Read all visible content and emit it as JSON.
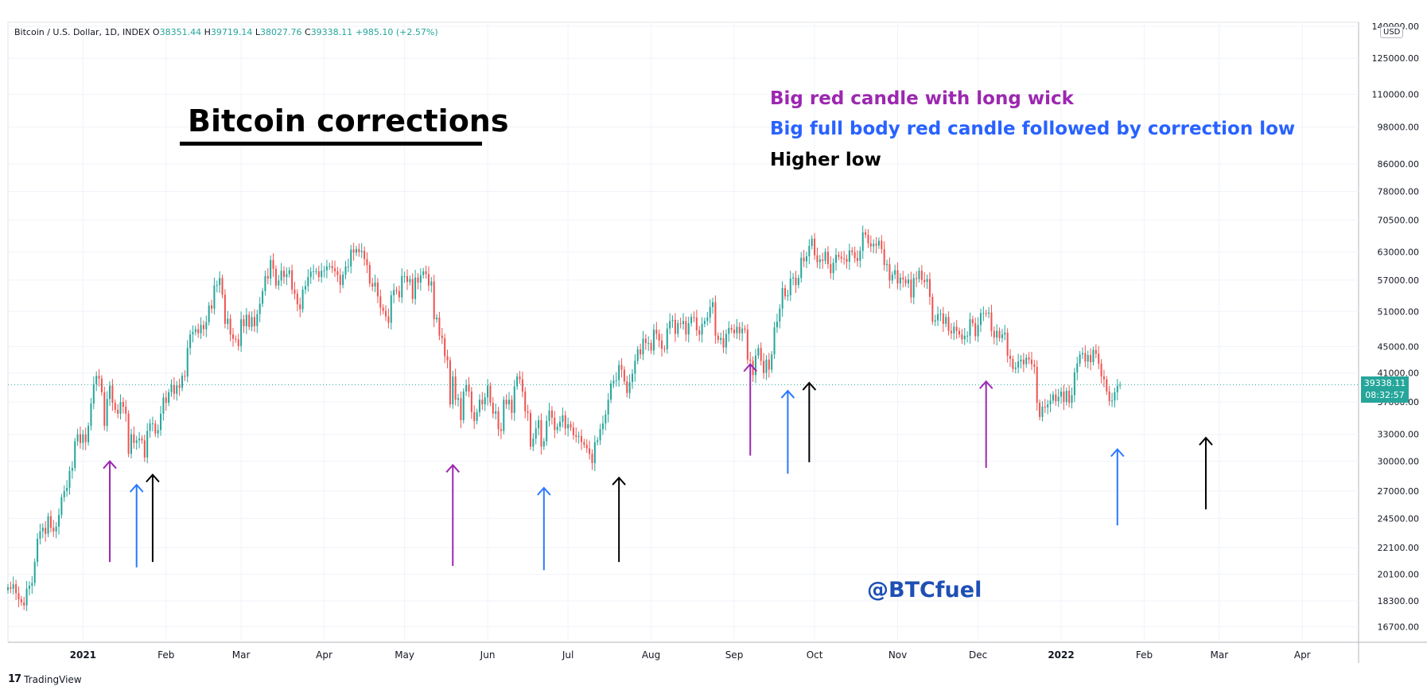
{
  "header": {
    "symbol": "Bitcoin / U.S. Dollar, 1D, INDEX",
    "o_label": "O",
    "o_value": "38351.44",
    "h_label": "H",
    "h_value": "39719.14",
    "l_label": "L",
    "l_value": "38027.76",
    "c_label": "C",
    "c_value": "39338.11",
    "change": "+985.10 (+2.57%)"
  },
  "currency": "USD",
  "price_box": {
    "price": "39338.11",
    "countdown": "08:32:57"
  },
  "footer": {
    "brand_logo": "17",
    "brand": "TradingView"
  },
  "annotation": {
    "title": "Bitcoin corrections",
    "legend": [
      {
        "text": "Big red candle with long wick",
        "color": "#9c27b0"
      },
      {
        "text": "Big full body red candle followed by correction low",
        "color": "#2962ff"
      },
      {
        "text": "Higher low",
        "color": "#000000"
      }
    ],
    "watermark": "@BTCfuel"
  },
  "colors": {
    "up": "#26a69a",
    "down": "#ef5350",
    "purple": "#9c27b0",
    "blue": "#2979ff",
    "black": "#000000",
    "grid": "#f0f3fa",
    "axis_text": "#131722"
  },
  "chart_data": {
    "type": "candlestick",
    "scale": "log",
    "ylim": [
      15800,
      142000
    ],
    "xlim": [
      "2020-12-04",
      "2022-04-22"
    ],
    "y_ticks": [
      "140000.00",
      "125000.00",
      "110000.00",
      "98000.00",
      "86000.00",
      "78000.00",
      "70500.00",
      "63000.00",
      "57000.00",
      "51000.00",
      "45000.00",
      "41000.00",
      "37000.00",
      "33000.00",
      "30000.00",
      "27000.00",
      "24500.00",
      "22100.00",
      "20100.00",
      "18300.00",
      "16700.00"
    ],
    "x_ticks": [
      {
        "label": "2021",
        "date": "2021-01-01",
        "bold": true
      },
      {
        "label": "Feb",
        "date": "2021-02-01"
      },
      {
        "label": "Mar",
        "date": "2021-03-01"
      },
      {
        "label": "Apr",
        "date": "2021-04-01"
      },
      {
        "label": "May",
        "date": "2021-05-01"
      },
      {
        "label": "Jun",
        "date": "2021-06-01"
      },
      {
        "label": "Jul",
        "date": "2021-07-01"
      },
      {
        "label": "Aug",
        "date": "2021-08-01"
      },
      {
        "label": "Sep",
        "date": "2021-09-01"
      },
      {
        "label": "Oct",
        "date": "2021-10-01"
      },
      {
        "label": "Nov",
        "date": "2021-11-01"
      },
      {
        "label": "Dec",
        "date": "2021-12-01"
      },
      {
        "label": "2022",
        "date": "2022-01-01",
        "bold": true
      },
      {
        "label": "Feb",
        "date": "2022-02-01"
      },
      {
        "label": "Mar",
        "date": "2022-03-01"
      },
      {
        "label": "Apr",
        "date": "2022-04-01"
      }
    ],
    "start_date": "2020-12-04",
    "current_price": 39338.11,
    "closes": [
      19200,
      19100,
      19400,
      18800,
      18400,
      18200,
      18000,
      19100,
      19300,
      19500,
      21000,
      22800,
      23400,
      23700,
      23200,
      24700,
      23700,
      23400,
      23800,
      24800,
      26400,
      27000,
      27300,
      29000,
      29300,
      32200,
      33000,
      32000,
      33000,
      32100,
      34000,
      36800,
      39400,
      40600,
      40200,
      38300,
      34000,
      37400,
      39200,
      36900,
      36000,
      35500,
      37000,
      36400,
      35500,
      30800,
      33000,
      32000,
      32300,
      32500,
      32300,
      30400,
      33400,
      34300,
      34300,
      33100,
      33500,
      35500,
      37600,
      36900,
      38300,
      39300,
      38100,
      39250,
      38900,
      40600,
      40500,
      44800,
      47000,
      47400,
      47900,
      47200,
      48600,
      47900,
      49100,
      52100,
      51500,
      55900,
      56000,
      57400,
      54100,
      48800,
      49700,
      47000,
      46300,
      46200,
      45100,
      49600,
      48400,
      50400,
      48300,
      50000,
      48400,
      50500,
      52400,
      54800,
      57800,
      57300,
      61200,
      59300,
      55900,
      56900,
      58900,
      57600,
      58200,
      59000,
      55100,
      54300,
      52300,
      51400,
      55100,
      55800,
      57600,
      58700,
      58800,
      58800,
      57600,
      58900,
      59000,
      59800,
      59900,
      59400,
      58800,
      58000,
      56000,
      58100,
      59800,
      59800,
      63500,
      62800,
      63600,
      62900,
      63200,
      61400,
      60100,
      56300,
      55700,
      56500,
      53800,
      51700,
      51100,
      50100,
      49000,
      54000,
      55000,
      54800,
      53600,
      57800,
      57800,
      56600,
      57200,
      53300,
      57500,
      56500,
      58000,
      58800,
      58200,
      55900,
      56700,
      49600,
      49900,
      46800,
      46400,
      43500,
      42900,
      36700,
      40500,
      37300,
      37500,
      34700,
      38400,
      39300,
      38400,
      35700,
      34600,
      35700,
      37300,
      36700,
      37600,
      39200,
      36900,
      35500,
      35800,
      33600,
      33400,
      37300,
      36700,
      37300,
      35600,
      39100,
      40500,
      40100,
      38400,
      35800,
      35600,
      31600,
      32500,
      33700,
      34700,
      31600,
      32200,
      34600,
      35900,
      35000,
      33500,
      33900,
      34500,
      35300,
      33700,
      34200,
      33800,
      32900,
      32700,
      32800,
      32100,
      31800,
      31400,
      30800,
      29800,
      32100,
      32300,
      33600,
      34300,
      35400,
      37300,
      39500,
      39900,
      40000,
      42200,
      41500,
      39800,
      38200,
      39700,
      40900,
      42800,
      44600,
      43800,
      46300,
      45600,
      45600,
      44400,
      47800,
      47100,
      46000,
      44700,
      44600,
      48000,
      49300,
      49500,
      47100,
      48900,
      48800,
      49300,
      47000,
      48900,
      50000,
      49900,
      47700,
      47000,
      48800,
      49300,
      49900,
      51800,
      52700,
      46800,
      46100,
      46400,
      44900,
      47100,
      48100,
      47800,
      47200,
      48300,
      47200,
      48000,
      47800,
      43000,
      42800,
      40700,
      43600,
      44800,
      42800,
      41000,
      43000,
      41500,
      43800,
      48200,
      49200,
      51500,
      55400,
      53800,
      54000,
      57300,
      57500,
      56000,
      57400,
      61700,
      60900,
      62000,
      64300,
      66000,
      62200,
      60700,
      61300,
      61000,
      63000,
      60300,
      58400,
      60600,
      62300,
      61900,
      61500,
      61400,
      60800,
      63300,
      62900,
      61600,
      61000,
      63200,
      67500,
      66900,
      64900,
      64200,
      64800,
      64400,
      65500,
      63600,
      60100,
      60300,
      56900,
      58100,
      59000,
      56300,
      57500,
      57100,
      56300,
      57100,
      53600,
      57400,
      57200,
      58900,
      57000,
      56600,
      57200,
      53700,
      49200,
      49400,
      50500,
      50600,
      48800,
      50000,
      47600,
      47200,
      48300,
      47600,
      47000,
      46200,
      46800,
      46800,
      49600,
      48900,
      46700,
      48600,
      50700,
      50700,
      50600,
      50800,
      47600,
      46500,
      47600,
      46400,
      47000,
      47300,
      43600,
      43100,
      41600,
      41800,
      42700,
      43000,
      42300,
      43300,
      43000,
      42300,
      41900,
      36900,
      35100,
      36400,
      36300,
      36700,
      37200,
      38000,
      37100,
      37700,
      38400,
      37000,
      38500,
      36900,
      37900,
      41100,
      42400,
      43800,
      44000,
      42700,
      43700,
      42600,
      44500,
      43900,
      42400,
      40500,
      40100,
      38400,
      37100,
      37200,
      38300,
      39200,
      39300
    ]
  },
  "annotation_arrows": [
    {
      "color": "purple",
      "date": "2021-01-11",
      "low": 21000,
      "high": 30000
    },
    {
      "color": "blue",
      "date": "2021-01-21",
      "low": 20600,
      "high": 27600
    },
    {
      "color": "black",
      "date": "2021-01-27",
      "low": 21000,
      "high": 28600
    },
    {
      "color": "purple",
      "date": "2021-05-19",
      "low": 20700,
      "high": 29600
    },
    {
      "color": "blue",
      "date": "2021-06-22",
      "low": 20400,
      "high": 27300
    },
    {
      "color": "black",
      "date": "2021-07-20",
      "low": 21000,
      "high": 28300
    },
    {
      "color": "purple",
      "date": "2021-09-07",
      "low": 30600,
      "high": 42300
    },
    {
      "color": "blue",
      "date": "2021-09-21",
      "low": 28700,
      "high": 38500
    },
    {
      "color": "black",
      "date": "2021-09-29",
      "low": 29900,
      "high": 39600
    },
    {
      "color": "purple",
      "date": "2021-12-04",
      "low": 29300,
      "high": 39800
    },
    {
      "color": "blue",
      "date": "2022-01-22",
      "low": 23900,
      "high": 31300
    },
    {
      "color": "black",
      "date": "2022-02-24",
      "low": 25300,
      "high": 32600
    }
  ]
}
